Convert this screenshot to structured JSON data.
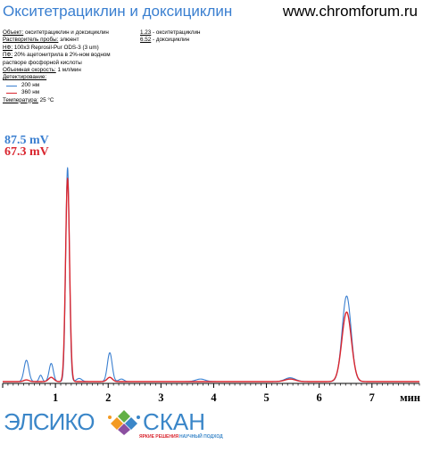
{
  "header": {
    "title": "Окситетрациклин и доксициклин",
    "url": "www.chromforum.ru"
  },
  "conditions": {
    "object_label": "Объект:",
    "object_value": "окситетрациклин и доксициклин",
    "solvent_label": "Растворитель пробы:",
    "solvent_value": "элюент",
    "nf_label": "НФ:",
    "nf_value": "100х3 Reprosil-Pur ODS-3 (3 um)",
    "pf_label": "ПФ:",
    "pf_value_line1": "20% ацетонитрила в 2%-ном водном",
    "pf_value_line2": "растворе фосфорной кислоты",
    "flow_label": "Объемная скорость:",
    "flow_value": "1 мл/мин",
    "detection_label": "Детектирование:",
    "detection_1": "200 нм",
    "detection_2": "360 нм",
    "temperature_label": "Температура:",
    "temperature_value": "25 °C"
  },
  "peak_list": [
    {
      "rt": "1.23",
      "name": "- окситетрациклин"
    },
    {
      "rt": "6.52",
      "name": "- доксициклин"
    }
  ],
  "scale": {
    "blue": "87.5 mV",
    "red": "67.3 mV"
  },
  "logo": {
    "left": "ЭЛСИКО",
    "right": "СКАН",
    "tagline_left": "ЯРКИЕ РЕШЕНИЯ",
    "tagline_right": "НАУЧНЫЙ ПОДХОД"
  },
  "colors": {
    "blue": "#3a7fd0",
    "red": "#d9262f",
    "axis": "#000000",
    "logo_blue": "#3a86c8",
    "logo_green": "#62b046",
    "logo_orange": "#f39a22",
    "logo_purple": "#8b4fa0"
  },
  "chart_data": {
    "type": "line",
    "xlabel": "мин",
    "xlim": [
      0,
      7.9
    ],
    "ylim": [
      0,
      1.05
    ],
    "x_ticks": [
      1,
      2,
      3,
      4,
      5,
      6,
      7
    ],
    "annotations": [
      {
        "text": "1.23",
        "x": 1.23
      },
      {
        "text": "6.52",
        "x": 6.52
      }
    ],
    "series": [
      {
        "name": "200 нм",
        "color": "#3a7fd0",
        "peaks": [
          {
            "rt": 0.45,
            "height": 0.1,
            "width": 0.045
          },
          {
            "rt": 0.72,
            "height": 0.03,
            "width": 0.03
          },
          {
            "rt": 0.92,
            "height": 0.085,
            "width": 0.04
          },
          {
            "rt": 1.23,
            "height": 1.0,
            "width": 0.035
          },
          {
            "rt": 1.45,
            "height": 0.015,
            "width": 0.05
          },
          {
            "rt": 2.03,
            "height": 0.135,
            "width": 0.045
          },
          {
            "rt": 2.25,
            "height": 0.012,
            "width": 0.05
          },
          {
            "rt": 3.75,
            "height": 0.012,
            "width": 0.09
          },
          {
            "rt": 5.45,
            "height": 0.018,
            "width": 0.1
          },
          {
            "rt": 6.52,
            "height": 0.4,
            "width": 0.085
          }
        ]
      },
      {
        "name": "360 нм",
        "color": "#d9262f",
        "peaks": [
          {
            "rt": 0.45,
            "height": 0.008,
            "width": 0.05
          },
          {
            "rt": 0.92,
            "height": 0.02,
            "width": 0.05
          },
          {
            "rt": 1.23,
            "height": 0.95,
            "width": 0.038
          },
          {
            "rt": 2.03,
            "height": 0.02,
            "width": 0.05
          },
          {
            "rt": 5.45,
            "height": 0.012,
            "width": 0.1
          },
          {
            "rt": 6.52,
            "height": 0.325,
            "width": 0.09
          }
        ]
      }
    ]
  }
}
